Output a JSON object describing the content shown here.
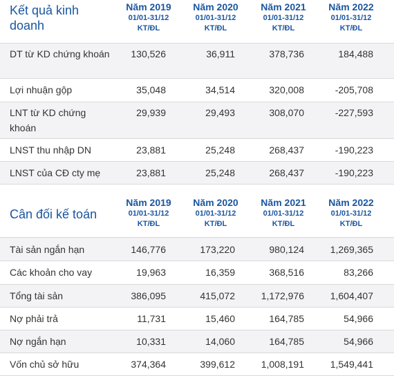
{
  "kqkd": {
    "title": "Kết quả kinh doanh",
    "columns": [
      {
        "year": "Năm 2019",
        "period": "01/01-31/12",
        "unit": "KT/ĐL"
      },
      {
        "year": "Năm 2020",
        "period": "01/01-31/12",
        "unit": "KT/ĐL"
      },
      {
        "year": "Năm 2021",
        "period": "01/01-31/12",
        "unit": "KT/ĐL"
      },
      {
        "year": "Năm 2022",
        "period": "01/01-31/12",
        "unit": "KT/ĐL"
      }
    ],
    "rows": [
      {
        "label": "DT từ KD chứng khoán",
        "values": [
          "130,526",
          "36,911",
          "378,736",
          "184,488"
        ]
      },
      {
        "label": "Lợi nhuận gộp",
        "values": [
          "35,048",
          "34,514",
          "320,008",
          "-205,708"
        ]
      },
      {
        "label": "LNT từ KD chứng khoán",
        "values": [
          "29,939",
          "29,493",
          "308,070",
          "-227,593"
        ]
      },
      {
        "label": "LNST thu nhập DN",
        "values": [
          "23,881",
          "25,248",
          "268,437",
          "-190,223"
        ]
      },
      {
        "label": "LNST của CĐ cty mẹ",
        "values": [
          "23,881",
          "25,248",
          "268,437",
          "-190,223"
        ]
      }
    ]
  },
  "cdkt": {
    "title": "Cân đối kế toán",
    "columns": [
      {
        "year": "Năm 2019",
        "period": "01/01-31/12",
        "unit": "KT/ĐL"
      },
      {
        "year": "Năm 2020",
        "period": "01/01-31/12",
        "unit": "KT/ĐL"
      },
      {
        "year": "Năm 2021",
        "period": "01/01-31/12",
        "unit": "KT/ĐL"
      },
      {
        "year": "Năm 2022",
        "period": "01/01-31/12",
        "unit": "KT/ĐL"
      }
    ],
    "rows": [
      {
        "label": "Tài sản ngắn hạn",
        "values": [
          "146,776",
          "173,220",
          "980,124",
          "1,269,365"
        ]
      },
      {
        "label": "Các khoản cho vay",
        "values": [
          "19,963",
          "16,359",
          "368,516",
          "83,266"
        ]
      },
      {
        "label": "Tổng tài sản",
        "values": [
          "386,095",
          "415,072",
          "1,172,976",
          "1,604,407"
        ]
      },
      {
        "label": "Nợ phải trả",
        "values": [
          "11,731",
          "15,460",
          "164,785",
          "54,966"
        ]
      },
      {
        "label": "Nợ ngắn hạn",
        "values": [
          "10,331",
          "14,060",
          "164,785",
          "54,966"
        ]
      },
      {
        "label": "Vốn chủ sở hữu",
        "values": [
          "374,364",
          "399,612",
          "1,008,191",
          "1,549,441"
        ]
      }
    ]
  }
}
